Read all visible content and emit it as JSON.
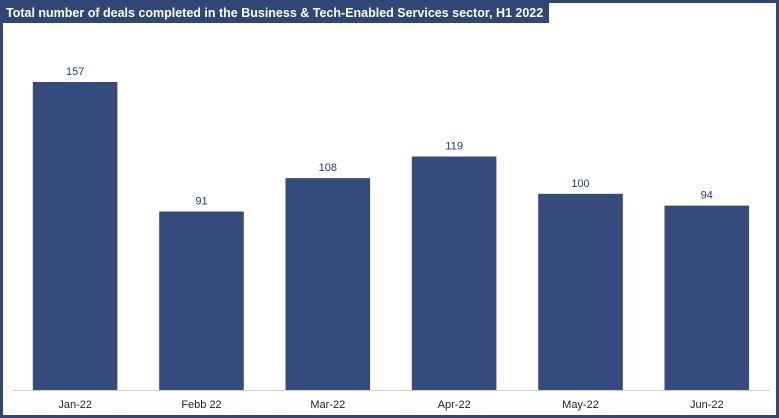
{
  "chart_data": {
    "type": "bar",
    "title": "Total number of deals completed in the Business & Tech-Enabled Services sector, H1 2022",
    "categories": [
      "Jan-22",
      "Febb 22",
      "Mar-22",
      "Apr-22",
      "May-22",
      "Jun-22"
    ],
    "values": [
      157,
      91,
      108,
      119,
      100,
      94
    ],
    "xlabel": "",
    "ylabel": "",
    "ylim": [
      0,
      180
    ],
    "grid": false,
    "legend": "none",
    "data_labels": true,
    "colors": {
      "bar": "#344b7c",
      "title_bg": "#2f4676",
      "label": "#1f3a78"
    }
  }
}
